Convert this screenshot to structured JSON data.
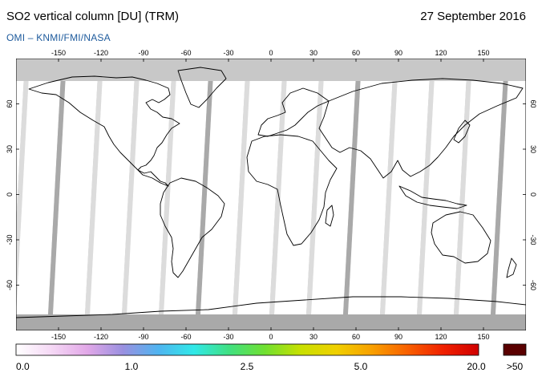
{
  "header": {
    "title": "SO2 vertical column [DU] (TRM)",
    "date": "27 September 2016",
    "credit": "OMI  –  KNMI/FMI/NASA"
  },
  "map": {
    "projection": "equirectangular",
    "lon_range": [
      -180,
      180
    ],
    "lat_range": [
      -90,
      90
    ],
    "lon_ticks": [
      "-150",
      "-120",
      "-90",
      "-60",
      "-30",
      "0",
      "30",
      "60",
      "90",
      "120",
      "150"
    ],
    "lon_tick_values": [
      -150,
      -120,
      -90,
      -60,
      -30,
      0,
      30,
      60,
      90,
      120,
      150
    ],
    "lat_ticks": [
      "60",
      "30",
      "0",
      "-30",
      "-60"
    ],
    "lat_tick_values": [
      60,
      30,
      0,
      -30,
      -60
    ],
    "colors": {
      "no_data": "#c8c8c8",
      "swath_gap": "#a9a9a9",
      "background_low": "#ffffff",
      "coastline": "#000000"
    }
  },
  "colorbar": {
    "labels": [
      "0.0",
      "1.0",
      "2.5",
      "5.0",
      "20.0",
      ">50"
    ],
    "label_values": [
      0.0,
      1.0,
      2.5,
      5.0,
      20.0
    ],
    "stops": [
      "#ffffff",
      "#f5d8f5",
      "#e2a8e8",
      "#9a90e0",
      "#4fb4f0",
      "#30e8e8",
      "#40e080",
      "#70e030",
      "#c8e000",
      "#f0d000",
      "#f8a000",
      "#f86000",
      "#f02000",
      "#d00000"
    ],
    "overflow_color": "#5a0000"
  }
}
